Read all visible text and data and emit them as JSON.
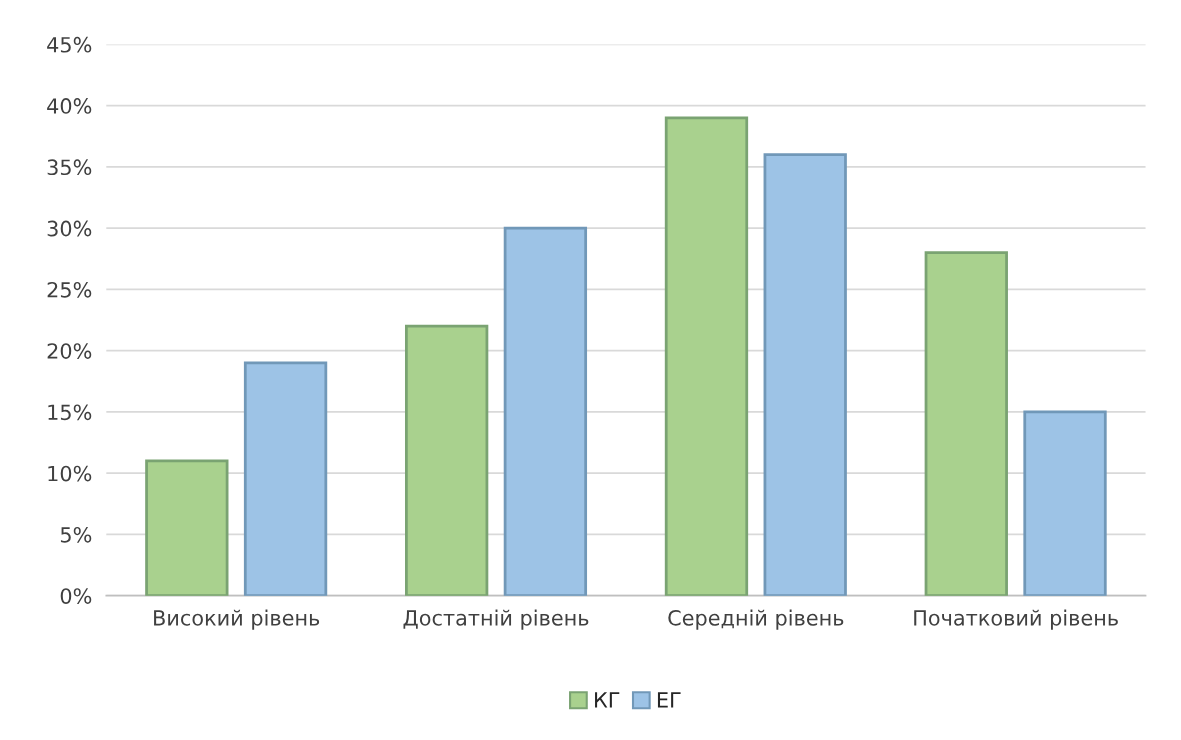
{
  "chart_data": {
    "type": "bar",
    "categories": [
      "Високий рівень",
      "Достатній рівень",
      "Середній рівень",
      "Початковий рівень"
    ],
    "series": [
      {
        "name": "КГ",
        "color": "#a9d18e",
        "values": [
          11,
          22,
          39,
          28
        ]
      },
      {
        "name": "ЕГ",
        "color": "#9dc3e6",
        "values": [
          19,
          30,
          36,
          15
        ]
      }
    ],
    "ylim": [
      0,
      45
    ],
    "yticks": [
      {
        "value": 0,
        "label": "0%"
      },
      {
        "value": 5,
        "label": "5%"
      },
      {
        "value": 10,
        "label": "10%"
      },
      {
        "value": 15,
        "label": "15%"
      },
      {
        "value": 20,
        "label": "20%"
      },
      {
        "value": 25,
        "label": "25%"
      },
      {
        "value": 30,
        "label": "30%"
      },
      {
        "value": 35,
        "label": "35%"
      },
      {
        "value": 40,
        "label": "40%"
      },
      {
        "value": 45,
        "label": "45%"
      }
    ],
    "grid": "y",
    "legend": "bottom"
  }
}
